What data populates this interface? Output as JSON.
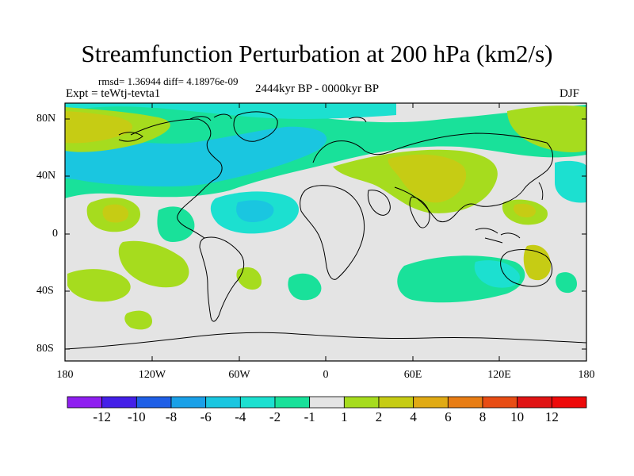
{
  "title": "Streamfunction Perturbation at 200 hPa (km2/s)",
  "stats": "rmsd= 1.36944 diff= 4.18976e-09",
  "experiment": "Expt = teWtj-tevta1",
  "period": "2444kyr BP - 0000kyr BP",
  "season": "DJF",
  "lat_labels": [
    "80N",
    "40N",
    "0",
    "40S",
    "80S"
  ],
  "lon_labels": [
    "180",
    "120W",
    "60W",
    "0",
    "60E",
    "120E",
    "180"
  ],
  "colorbar": {
    "labels": [
      "-12",
      "-10",
      "-8",
      "-6",
      "-4",
      "-2",
      "-1",
      "1",
      "2",
      "4",
      "6",
      "8",
      "10",
      "12"
    ],
    "colors": [
      "#8f1ff0",
      "#4420e8",
      "#1f5fe6",
      "#1aa0e8",
      "#1ac6e0",
      "#1ce0d0",
      "#19e19a",
      "#e4e4e4",
      "#a6dc1e",
      "#c6cc14",
      "#e0aa14",
      "#e87d14",
      "#e84d14",
      "#e01414",
      "#ee0a0a"
    ]
  },
  "colors": {
    "background": "#e4e4e4",
    "neg2": "#1ce0d0",
    "neg4": "#1ac6e0",
    "neg1": "#19e19a",
    "pos1": "#a6dc1e",
    "pos2": "#c6cc14",
    "pos4": "#e0aa14"
  }
}
